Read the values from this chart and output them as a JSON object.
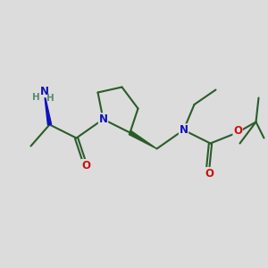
{
  "bg_color": "#dcdcdc",
  "bond_color": "#2a5c2a",
  "bond_width": 1.5,
  "atom_colors": {
    "N": "#1111bb",
    "O": "#cc1111",
    "C": "#2a5c2a",
    "H": "#5a8a6a"
  },
  "figsize": [
    3.0,
    3.0
  ],
  "dpi": 100,
  "xlim": [
    0,
    10
  ],
  "ylim": [
    0,
    10
  ]
}
